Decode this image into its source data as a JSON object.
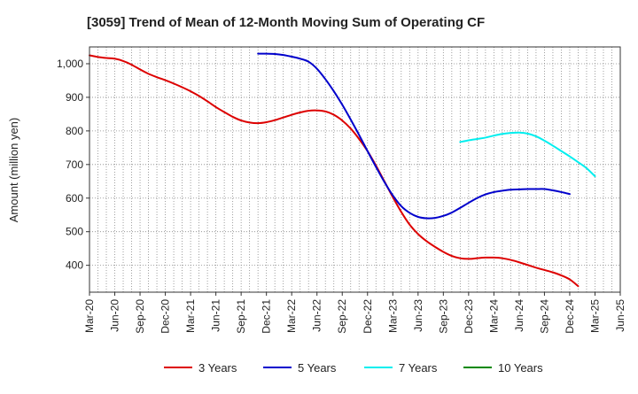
{
  "chart_data": {
    "type": "line",
    "title": "[3059]  Trend of Mean of 12-Month Moving Sum of Operating CF",
    "xlabel": "",
    "ylabel": "Amount (million yen)",
    "x_ticks": [
      "Mar-20",
      "Jun-20",
      "Sep-20",
      "Dec-20",
      "Mar-21",
      "Jun-21",
      "Sep-21",
      "Dec-21",
      "Mar-22",
      "Jun-22",
      "Sep-22",
      "Dec-22",
      "Mar-23",
      "Jun-23",
      "Sep-23",
      "Dec-23",
      "Mar-24",
      "Jun-24",
      "Sep-24",
      "Dec-24",
      "Mar-25",
      "Jun-25"
    ],
    "y_ticks": [
      400,
      500,
      600,
      700,
      800,
      900,
      1000
    ],
    "y_tick_labels": [
      "400",
      "500",
      "600",
      "700",
      "800",
      "900",
      "1,000"
    ],
    "ylim": [
      320,
      1050
    ],
    "grid": true,
    "legend_position": "bottom",
    "series": [
      {
        "name": "3 Years",
        "color": "#dd0000",
        "points": [
          [
            "Mar-20",
            1025
          ],
          [
            "Apr-20",
            1020
          ],
          [
            "May-20",
            1017
          ],
          [
            "Jun-20",
            1015
          ],
          [
            "Jul-20",
            1008
          ],
          [
            "Aug-20",
            997
          ],
          [
            "Sep-20",
            983
          ],
          [
            "Oct-20",
            970
          ],
          [
            "Nov-20",
            960
          ],
          [
            "Dec-20",
            951
          ],
          [
            "Jan-21",
            941
          ],
          [
            "Feb-21",
            930
          ],
          [
            "Mar-21",
            918
          ],
          [
            "Apr-21",
            904
          ],
          [
            "May-21",
            888
          ],
          [
            "Jun-21",
            871
          ],
          [
            "Jul-21",
            856
          ],
          [
            "Aug-21",
            842
          ],
          [
            "Sep-21",
            831
          ],
          [
            "Oct-21",
            825
          ],
          [
            "Nov-21",
            823
          ],
          [
            "Dec-21",
            826
          ],
          [
            "Jan-22",
            832
          ],
          [
            "Feb-22",
            840
          ],
          [
            "Mar-22",
            848
          ],
          [
            "Apr-22",
            855
          ],
          [
            "May-22",
            860
          ],
          [
            "Jun-22",
            861
          ],
          [
            "Jul-22",
            858
          ],
          [
            "Aug-22",
            848
          ],
          [
            "Sep-22",
            831
          ],
          [
            "Oct-22",
            807
          ],
          [
            "Nov-22",
            776
          ],
          [
            "Dec-22",
            740
          ],
          [
            "Jan-23",
            697
          ],
          [
            "Feb-23",
            650
          ],
          [
            "Mar-23",
            603
          ],
          [
            "Apr-23",
            559
          ],
          [
            "May-23",
            521
          ],
          [
            "Jun-23",
            493
          ],
          [
            "Jul-23",
            472
          ],
          [
            "Aug-23",
            455
          ],
          [
            "Sep-23",
            440
          ],
          [
            "Oct-23",
            428
          ],
          [
            "Nov-23",
            421
          ],
          [
            "Dec-23",
            419
          ],
          [
            "Jan-24",
            421
          ],
          [
            "Feb-24",
            423
          ],
          [
            "Mar-24",
            423
          ],
          [
            "Apr-24",
            421
          ],
          [
            "May-24",
            416
          ],
          [
            "Jun-24",
            409
          ],
          [
            "Jul-24",
            401
          ],
          [
            "Aug-24",
            393
          ],
          [
            "Sep-24",
            386
          ],
          [
            "Oct-24",
            379
          ],
          [
            "Nov-24",
            370
          ],
          [
            "Dec-24",
            358
          ],
          [
            "Jan-25",
            338
          ]
        ]
      },
      {
        "name": "5 Years",
        "color": "#0000cc",
        "points": [
          [
            "Nov-21",
            1030
          ],
          [
            "Dec-21",
            1030
          ],
          [
            "Jan-22",
            1029
          ],
          [
            "Feb-22",
            1026
          ],
          [
            "Mar-22",
            1021
          ],
          [
            "Apr-22",
            1015
          ],
          [
            "May-22",
            1006
          ],
          [
            "Jun-22",
            985
          ],
          [
            "Jul-22",
            954
          ],
          [
            "Aug-22",
            918
          ],
          [
            "Sep-22",
            878
          ],
          [
            "Oct-22",
            834
          ],
          [
            "Nov-22",
            788
          ],
          [
            "Dec-22",
            740
          ],
          [
            "Jan-23",
            693
          ],
          [
            "Feb-23",
            648
          ],
          [
            "Mar-23",
            608
          ],
          [
            "Apr-23",
            576
          ],
          [
            "May-23",
            556
          ],
          [
            "Jun-23",
            544
          ],
          [
            "Jul-23",
            540
          ],
          [
            "Aug-23",
            541
          ],
          [
            "Sep-23",
            547
          ],
          [
            "Oct-23",
            557
          ],
          [
            "Nov-23",
            571
          ],
          [
            "Dec-23",
            586
          ],
          [
            "Jan-24",
            600
          ],
          [
            "Feb-24",
            611
          ],
          [
            "Mar-24",
            618
          ],
          [
            "Apr-24",
            622
          ],
          [
            "May-24",
            625
          ],
          [
            "Jun-24",
            626
          ],
          [
            "Jul-24",
            627
          ],
          [
            "Aug-24",
            627
          ],
          [
            "Sep-24",
            627
          ],
          [
            "Oct-24",
            623
          ],
          [
            "Nov-24",
            618
          ],
          [
            "Dec-24",
            612
          ]
        ]
      },
      {
        "name": "7 Years",
        "color": "#00eeee",
        "points": [
          [
            "Nov-23",
            767
          ],
          [
            "Dec-23",
            772
          ],
          [
            "Jan-24",
            776
          ],
          [
            "Feb-24",
            780
          ],
          [
            "Mar-24",
            786
          ],
          [
            "Apr-24",
            791
          ],
          [
            "May-24",
            794
          ],
          [
            "Jun-24",
            795
          ],
          [
            "Jul-24",
            792
          ],
          [
            "Aug-24",
            784
          ],
          [
            "Sep-24",
            771
          ],
          [
            "Oct-24",
            756
          ],
          [
            "Nov-24",
            740
          ],
          [
            "Dec-24",
            724
          ],
          [
            "Jan-25",
            707
          ],
          [
            "Feb-25",
            689
          ],
          [
            "Mar-25",
            665
          ]
        ]
      },
      {
        "name": "10 Years",
        "color": "#008800",
        "points": []
      }
    ]
  }
}
